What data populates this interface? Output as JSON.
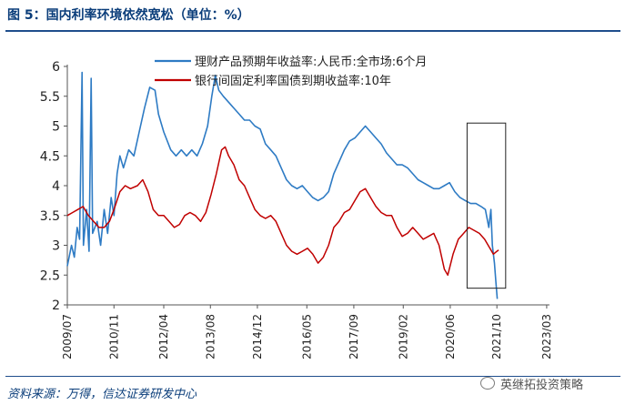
{
  "header": {
    "title": "图 5：国内利率环境依然宽松（单位：%）"
  },
  "footer": {
    "source": "资料来源：万得，信达证券研发中心",
    "watermark": "英继拓投资策略"
  },
  "colors": {
    "wealth_series": "#2E7BC4",
    "bond_series": "#C00000",
    "axis": "#555555",
    "rule": "#1f4e8c"
  },
  "chart_data": {
    "type": "line",
    "ylim": [
      2,
      6
    ],
    "yticks": [
      "2",
      "2.5",
      "3",
      "3.5",
      "4",
      "4.5",
      "5",
      "5.5",
      "6"
    ],
    "xlim": [
      2009.5,
      2023.25
    ],
    "xtick_labels": [
      "2009/07",
      "2010/11",
      "2012/04",
      "2013/08",
      "2014/12",
      "2016/05",
      "2017/09",
      "2019/02",
      "2020/06",
      "2021/10",
      "2023/03"
    ],
    "xtick_positions": [
      2009.5,
      2010.83,
      2012.25,
      2013.58,
      2014.92,
      2016.33,
      2017.67,
      2019.08,
      2020.42,
      2021.75,
      2023.17
    ],
    "legend_position": "top-center",
    "highlight_box": {
      "x": [
        2020.9,
        2022.0
      ],
      "y": [
        2.28,
        5.05
      ]
    },
    "series": [
      {
        "name": "理财产品预期年收益率:人民币:全市场:6个月",
        "color": "#2E7BC4",
        "points": [
          [
            2009.5,
            2.65
          ],
          [
            2009.62,
            3.0
          ],
          [
            2009.7,
            2.8
          ],
          [
            2009.78,
            3.3
          ],
          [
            2009.85,
            3.1
          ],
          [
            2009.92,
            5.9
          ],
          [
            2009.96,
            3.0
          ],
          [
            2010.05,
            3.6
          ],
          [
            2010.12,
            2.9
          ],
          [
            2010.18,
            5.8
          ],
          [
            2010.22,
            3.2
          ],
          [
            2010.35,
            3.4
          ],
          [
            2010.45,
            3.0
          ],
          [
            2010.55,
            3.6
          ],
          [
            2010.65,
            3.2
          ],
          [
            2010.75,
            3.8
          ],
          [
            2010.83,
            3.5
          ],
          [
            2010.92,
            4.2
          ],
          [
            2011.0,
            4.5
          ],
          [
            2011.1,
            4.3
          ],
          [
            2011.25,
            4.6
          ],
          [
            2011.4,
            4.5
          ],
          [
            2011.55,
            4.9
          ],
          [
            2011.7,
            5.3
          ],
          [
            2011.85,
            5.65
          ],
          [
            2012.0,
            5.6
          ],
          [
            2012.1,
            5.2
          ],
          [
            2012.25,
            4.9
          ],
          [
            2012.45,
            4.6
          ],
          [
            2012.6,
            4.5
          ],
          [
            2012.75,
            4.6
          ],
          [
            2012.9,
            4.5
          ],
          [
            2013.05,
            4.6
          ],
          [
            2013.2,
            4.5
          ],
          [
            2013.35,
            4.7
          ],
          [
            2013.5,
            5.0
          ],
          [
            2013.62,
            5.5
          ],
          [
            2013.72,
            5.85
          ],
          [
            2013.82,
            5.6
          ],
          [
            2013.95,
            5.5
          ],
          [
            2014.1,
            5.4
          ],
          [
            2014.25,
            5.3
          ],
          [
            2014.4,
            5.2
          ],
          [
            2014.55,
            5.1
          ],
          [
            2014.7,
            5.1
          ],
          [
            2014.85,
            5.0
          ],
          [
            2015.0,
            4.95
          ],
          [
            2015.15,
            4.7
          ],
          [
            2015.3,
            4.6
          ],
          [
            2015.45,
            4.5
          ],
          [
            2015.6,
            4.3
          ],
          [
            2015.75,
            4.1
          ],
          [
            2015.9,
            4.0
          ],
          [
            2016.05,
            3.95
          ],
          [
            2016.2,
            4.0
          ],
          [
            2016.35,
            3.9
          ],
          [
            2016.5,
            3.8
          ],
          [
            2016.65,
            3.75
          ],
          [
            2016.8,
            3.8
          ],
          [
            2016.95,
            3.9
          ],
          [
            2017.1,
            4.2
          ],
          [
            2017.25,
            4.4
          ],
          [
            2017.4,
            4.6
          ],
          [
            2017.55,
            4.75
          ],
          [
            2017.7,
            4.8
          ],
          [
            2017.85,
            4.9
          ],
          [
            2018.0,
            5.0
          ],
          [
            2018.15,
            4.9
          ],
          [
            2018.3,
            4.8
          ],
          [
            2018.45,
            4.7
          ],
          [
            2018.6,
            4.55
          ],
          [
            2018.75,
            4.45
          ],
          [
            2018.9,
            4.35
          ],
          [
            2019.05,
            4.35
          ],
          [
            2019.2,
            4.3
          ],
          [
            2019.35,
            4.2
          ],
          [
            2019.5,
            4.1
          ],
          [
            2019.65,
            4.05
          ],
          [
            2019.8,
            4.0
          ],
          [
            2019.95,
            3.95
          ],
          [
            2020.1,
            3.95
          ],
          [
            2020.25,
            4.0
          ],
          [
            2020.4,
            4.05
          ],
          [
            2020.55,
            3.9
          ],
          [
            2020.7,
            3.8
          ],
          [
            2020.85,
            3.75
          ],
          [
            2021.0,
            3.7
          ],
          [
            2021.15,
            3.7
          ],
          [
            2021.3,
            3.65
          ],
          [
            2021.42,
            3.6
          ],
          [
            2021.52,
            3.3
          ],
          [
            2021.58,
            3.6
          ],
          [
            2021.62,
            3.0
          ],
          [
            2021.68,
            2.7
          ],
          [
            2021.72,
            2.4
          ],
          [
            2021.76,
            2.1
          ]
        ]
      },
      {
        "name": "银行间固定利率国债到期收益率:10年",
        "color": "#C00000",
        "points": [
          [
            2009.5,
            3.5
          ],
          [
            2009.65,
            3.55
          ],
          [
            2009.8,
            3.6
          ],
          [
            2009.95,
            3.65
          ],
          [
            2010.1,
            3.5
          ],
          [
            2010.25,
            3.4
          ],
          [
            2010.4,
            3.3
          ],
          [
            2010.55,
            3.3
          ],
          [
            2010.7,
            3.4
          ],
          [
            2010.83,
            3.6
          ],
          [
            2011.0,
            3.9
          ],
          [
            2011.15,
            4.0
          ],
          [
            2011.3,
            3.95
          ],
          [
            2011.5,
            4.0
          ],
          [
            2011.65,
            4.1
          ],
          [
            2011.8,
            3.9
          ],
          [
            2011.95,
            3.6
          ],
          [
            2012.1,
            3.5
          ],
          [
            2012.25,
            3.5
          ],
          [
            2012.4,
            3.4
          ],
          [
            2012.55,
            3.3
          ],
          [
            2012.7,
            3.35
          ],
          [
            2012.85,
            3.5
          ],
          [
            2013.0,
            3.55
          ],
          [
            2013.15,
            3.5
          ],
          [
            2013.3,
            3.4
          ],
          [
            2013.45,
            3.55
          ],
          [
            2013.6,
            3.85
          ],
          [
            2013.75,
            4.2
          ],
          [
            2013.9,
            4.6
          ],
          [
            2014.0,
            4.65
          ],
          [
            2014.1,
            4.5
          ],
          [
            2014.25,
            4.35
          ],
          [
            2014.4,
            4.1
          ],
          [
            2014.55,
            4.0
          ],
          [
            2014.7,
            3.8
          ],
          [
            2014.85,
            3.6
          ],
          [
            2015.0,
            3.5
          ],
          [
            2015.15,
            3.45
          ],
          [
            2015.3,
            3.5
          ],
          [
            2015.45,
            3.4
          ],
          [
            2015.6,
            3.2
          ],
          [
            2015.75,
            3.0
          ],
          [
            2015.9,
            2.9
          ],
          [
            2016.05,
            2.85
          ],
          [
            2016.2,
            2.9
          ],
          [
            2016.35,
            2.95
          ],
          [
            2016.5,
            2.85
          ],
          [
            2016.65,
            2.7
          ],
          [
            2016.8,
            2.8
          ],
          [
            2016.95,
            3.0
          ],
          [
            2017.1,
            3.3
          ],
          [
            2017.25,
            3.4
          ],
          [
            2017.4,
            3.55
          ],
          [
            2017.55,
            3.6
          ],
          [
            2017.7,
            3.75
          ],
          [
            2017.85,
            3.9
          ],
          [
            2018.0,
            3.95
          ],
          [
            2018.15,
            3.8
          ],
          [
            2018.3,
            3.65
          ],
          [
            2018.45,
            3.55
          ],
          [
            2018.6,
            3.5
          ],
          [
            2018.75,
            3.5
          ],
          [
            2018.9,
            3.3
          ],
          [
            2019.05,
            3.15
          ],
          [
            2019.2,
            3.2
          ],
          [
            2019.35,
            3.3
          ],
          [
            2019.5,
            3.2
          ],
          [
            2019.65,
            3.1
          ],
          [
            2019.8,
            3.15
          ],
          [
            2019.95,
            3.2
          ],
          [
            2020.1,
            3.0
          ],
          [
            2020.25,
            2.6
          ],
          [
            2020.35,
            2.5
          ],
          [
            2020.5,
            2.85
          ],
          [
            2020.65,
            3.1
          ],
          [
            2020.8,
            3.2
          ],
          [
            2020.95,
            3.3
          ],
          [
            2021.1,
            3.25
          ],
          [
            2021.25,
            3.2
          ],
          [
            2021.4,
            3.1
          ],
          [
            2021.55,
            2.95
          ],
          [
            2021.65,
            2.85
          ],
          [
            2021.75,
            2.9
          ],
          [
            2021.8,
            2.92
          ]
        ]
      }
    ]
  }
}
